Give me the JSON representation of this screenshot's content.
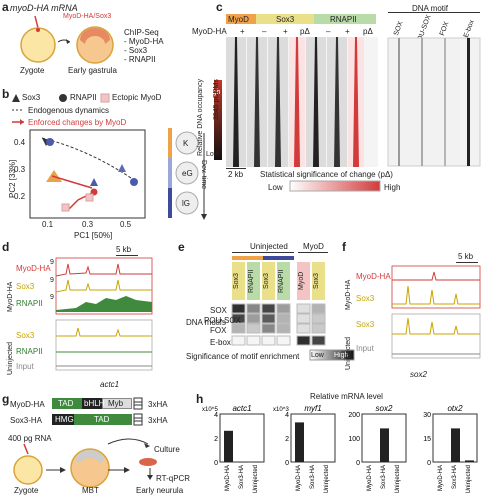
{
  "panel_a": {
    "label": "a",
    "mrna": "myoD-HA mRNA",
    "stage1": "Zygote",
    "stage2": "Early gastrula",
    "overlay": "MyoD-HA/Sox3",
    "list": [
      "ChIP-Seq",
      "- MyoD-HA",
      "- Sox3",
      "- RNAPII"
    ]
  },
  "panel_b": {
    "label": "b",
    "legend": [
      "Sox3",
      "RNAPII",
      "Ectopic MyoD"
    ],
    "lines": [
      "Endogenous dynamics",
      "Enforced changes by MyoD"
    ],
    "xlabel": "PC1 [50%]",
    "ylabel": "PC2 [33%]",
    "yticks": [
      "0.4",
      "0.3",
      "0.2"
    ],
    "xticks": [
      "0.1",
      "0.3",
      "0.5"
    ],
    "stages": [
      "K",
      "eG",
      "lG"
    ],
    "axis": "Dev. time"
  },
  "panel_c": {
    "label": "c",
    "tracks": [
      "MyoD",
      "Sox3",
      "RNAPII"
    ],
    "row": "MyoD-HA",
    "signs": [
      "+",
      "–",
      "+",
      "pΔ",
      "–",
      "+",
      "pΔ"
    ],
    "yaxis": "Relative DNA occupancy",
    "hi": "High",
    "lo": "Low",
    "count": "3945 pCRMs",
    "scale": "2 kb",
    "sig": "Statistical significance of change (pΔ)",
    "sig_lo": "Low",
    "sig_hi": "High",
    "motif_title": "DNA motif",
    "motifs": [
      "SOX",
      "POU-SOX",
      "FOX",
      "E-box"
    ]
  },
  "panel_d": {
    "label": "d",
    "scale": "5 kb",
    "myod_group": "MyoD-HA",
    "uninj_group": "Uninjected",
    "tracks": [
      "MyoD-HA",
      "Sox3",
      "RNAPII"
    ],
    "uninj_tracks": [
      "Sox3",
      "RNAPII",
      "Input"
    ],
    "gene": "actc1",
    "ymax": [
      "9",
      "9",
      "9"
    ]
  },
  "panel_e": {
    "label": "e",
    "uninj": "Uninjected",
    "myod": "MyoD",
    "cols": [
      "Sox3",
      "RNAPII",
      "Sox3",
      "RNAPII",
      "MyoD",
      "Sox3"
    ],
    "row_title": "DNA motifs",
    "rows": [
      "SOX",
      "POU-SOX",
      "FOX",
      "E-box"
    ],
    "sig": "Significance of motif enrichment",
    "lo": "Low",
    "hi": "High"
  },
  "panel_f": {
    "label": "f",
    "scale": "5 kb",
    "myod_group": "MyoD-HA",
    "uninj_group": "Uninjected",
    "tracks": [
      "MyoD-HA",
      "Sox3"
    ],
    "uninj_tracks": [
      "Sox3",
      "Input"
    ],
    "gene": "sox2"
  },
  "panel_g": {
    "label": "g",
    "constructs": [
      {
        "name": "MyoD-HA",
        "domains": [
          "TAD",
          "bHLH",
          "Myb"
        ],
        "tag": "3xHA"
      },
      {
        "name": "Sox3-HA",
        "domains": [
          "HMG",
          "TAD"
        ],
        "tag": "3xHA"
      }
    ],
    "rna": "400 pg RNA",
    "stages": [
      "Zygote",
      "MBT",
      "Early neurula"
    ],
    "culture": "Culture",
    "readout": "RT-qPCR"
  },
  "panel_h": {
    "label": "h",
    "title": "Relative mRNA level",
    "chart_data": [
      {
        "type": "bar",
        "title": "actc1",
        "categories": [
          "MyoD-HA",
          "Sox3-HA",
          "Uninjected"
        ],
        "values": [
          2.6,
          0.0,
          0.0
        ],
        "ylim": [
          0,
          4
        ],
        "yunit": "x10^5",
        "yticks": [
          "4",
          "2",
          "0"
        ]
      },
      {
        "type": "bar",
        "title": "myf1",
        "categories": [
          "MyoD-HA",
          "Sox3-HA",
          "Uninjected"
        ],
        "values": [
          3.3,
          0.0,
          0.0
        ],
        "ylim": [
          0,
          4
        ],
        "yunit": "x10^3",
        "yticks": [
          "4",
          "2",
          "0"
        ]
      },
      {
        "type": "bar",
        "title": "sox2",
        "categories": [
          "MyoD-HA",
          "Sox3-HA",
          "Uninjected"
        ],
        "values": [
          0,
          140,
          0
        ],
        "ylim": [
          0,
          200
        ],
        "yticks": [
          "200",
          "100",
          "0"
        ]
      },
      {
        "type": "bar",
        "title": "otx2",
        "categories": [
          "MyoD-HA",
          "Sox3-HA",
          "Uninjected"
        ],
        "values": [
          0,
          21,
          1
        ],
        "ylim": [
          0,
          30
        ],
        "yticks": [
          "30",
          "15",
          "0"
        ]
      }
    ]
  }
}
